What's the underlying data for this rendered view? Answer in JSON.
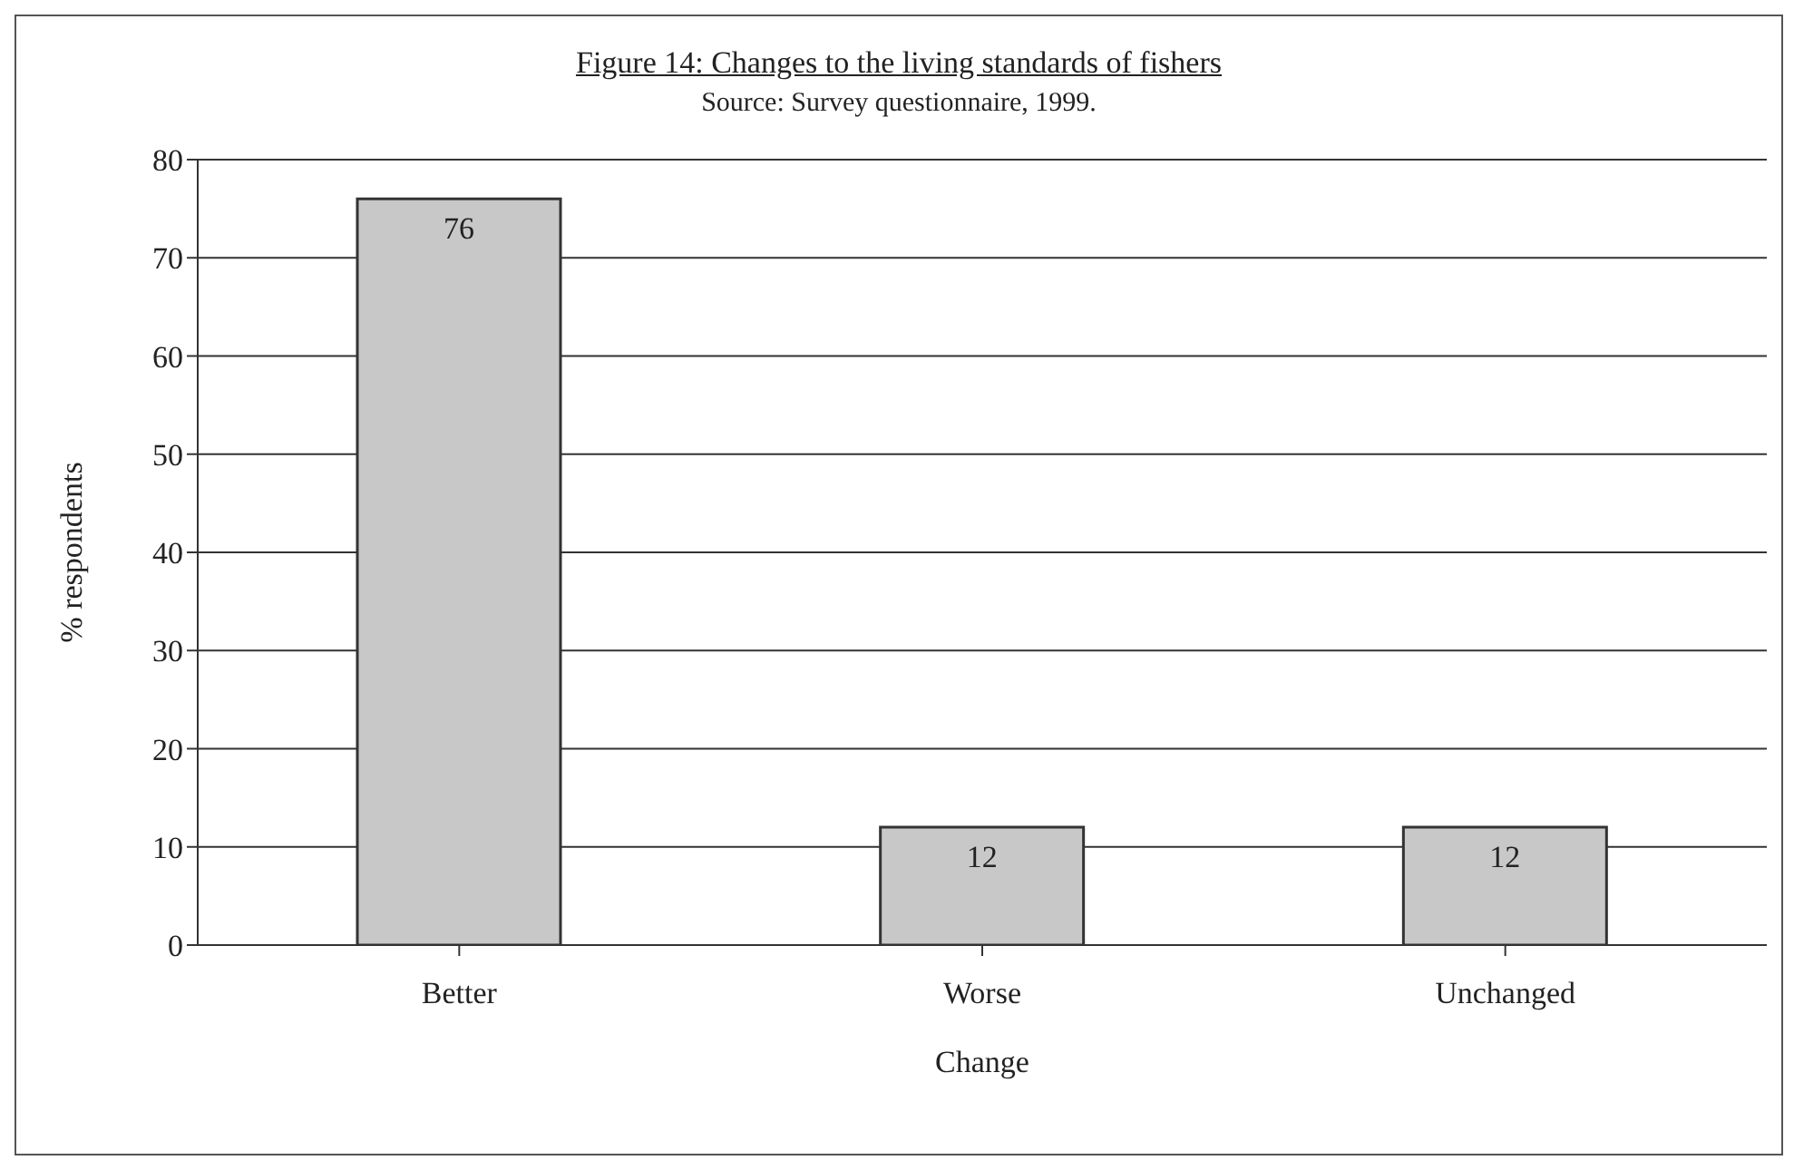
{
  "chart_data": {
    "type": "bar",
    "title": "Figure 14: Changes to the living standards of fishers",
    "subtitle": "Source: Survey questionnaire, 1999.",
    "xlabel": "Change",
    "ylabel": "% respondents",
    "categories": [
      "Better",
      "Worse",
      "Unchanged"
    ],
    "values": [
      76,
      12,
      12
    ],
    "color": "#c8c8c8",
    "ylim": [
      0,
      80
    ],
    "yticks": [
      0,
      10,
      20,
      30,
      40,
      50,
      60,
      70,
      80
    ],
    "grid": "y",
    "data_labels": true
  }
}
